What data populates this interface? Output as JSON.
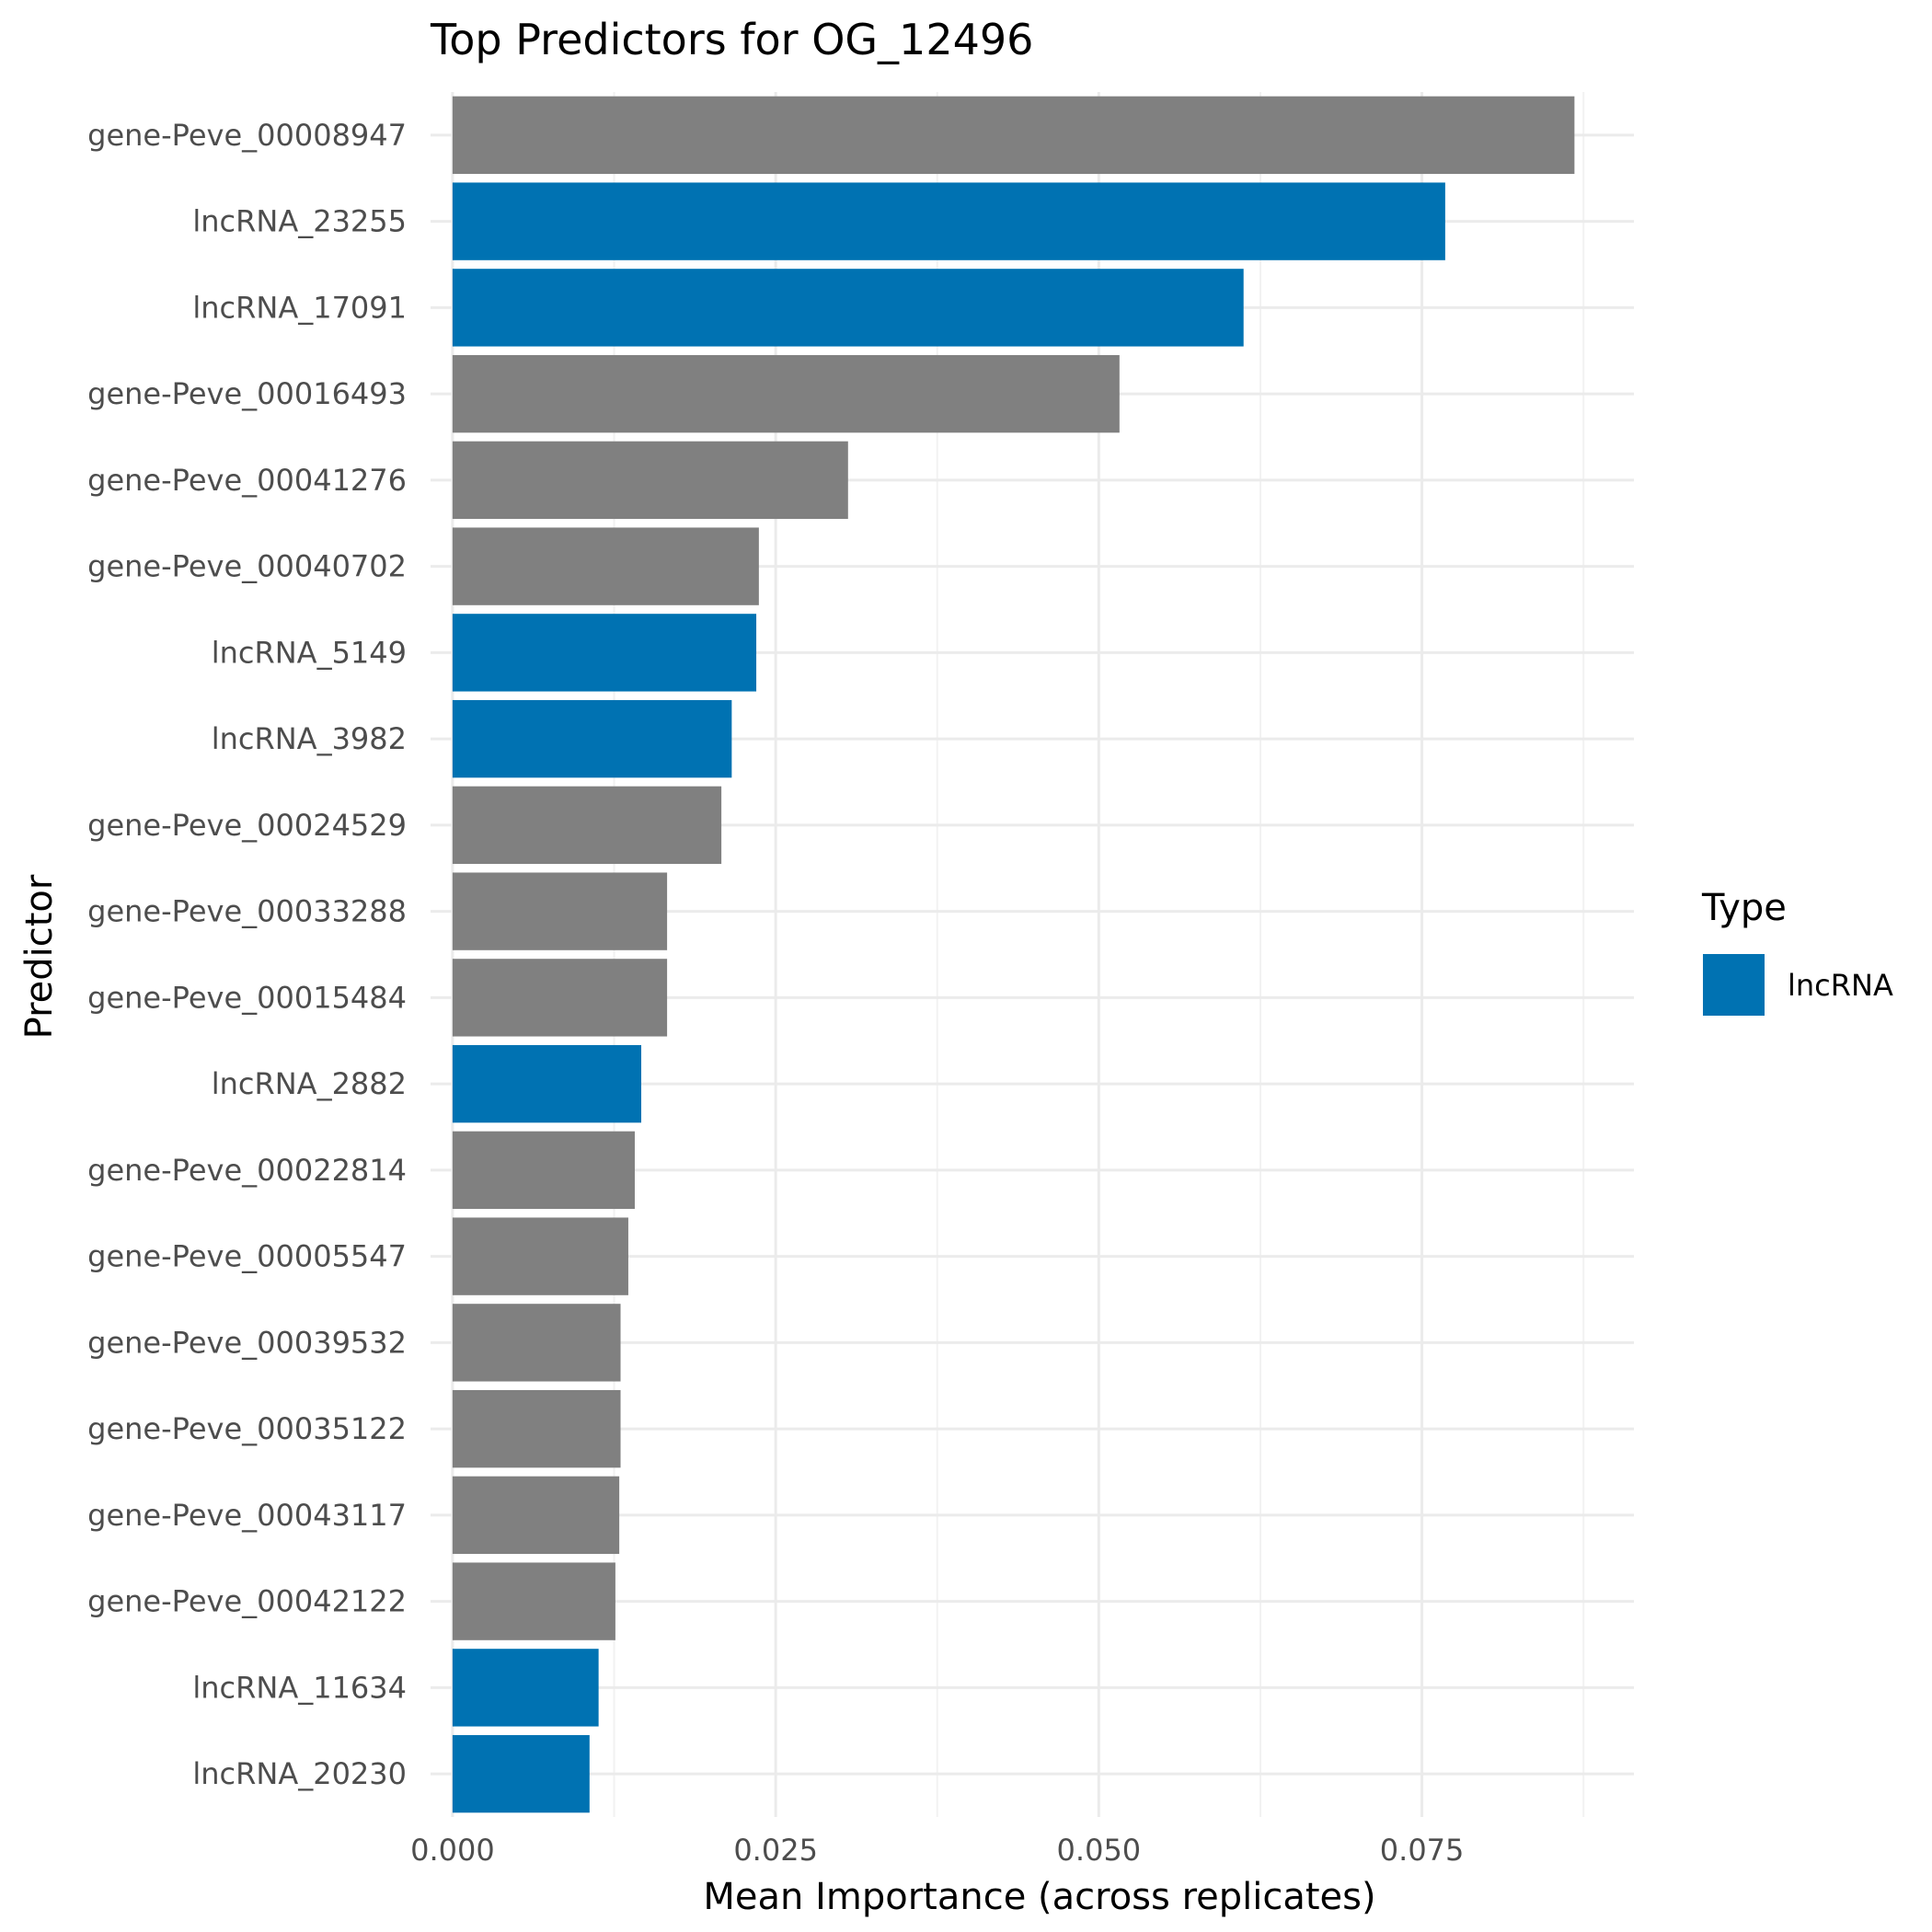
{
  "chart_data": {
    "type": "bar",
    "orientation": "horizontal",
    "title": "Top Predictors for OG_12496",
    "xlabel": "Mean Importance (across replicates)",
    "ylabel": "Predictor",
    "xlim": [
      -0.0017,
      0.0914
    ],
    "x_ticks": [
      "0.000",
      "0.025",
      "0.050",
      "0.075"
    ],
    "grid": true,
    "legend": {
      "title": "Type",
      "position": "right",
      "entries": [
        {
          "label": "lncRNA",
          "color": "#0072B2"
        }
      ]
    },
    "colors": {
      "gene": "#808080",
      "lncRNA": "#0072B2"
    },
    "categories": [
      "gene-Peve_00008947",
      "lncRNA_23255",
      "lncRNA_17091",
      "gene-Peve_00016493",
      "gene-Peve_00041276",
      "gene-Peve_00040702",
      "lncRNA_5149",
      "lncRNA_3982",
      "gene-Peve_00024529",
      "gene-Peve_00033288",
      "gene-Peve_00015484",
      "lncRNA_2882",
      "gene-Peve_00022814",
      "gene-Peve_00005547",
      "gene-Peve_00039532",
      "gene-Peve_00035122",
      "gene-Peve_00043117",
      "gene-Peve_00042122",
      "lncRNA_11634",
      "lncRNA_20230"
    ],
    "values": [
      0.0868,
      0.0768,
      0.0612,
      0.0516,
      0.0306,
      0.0237,
      0.0235,
      0.0216,
      0.0208,
      0.0166,
      0.0166,
      0.0146,
      0.0141,
      0.0136,
      0.013,
      0.013,
      0.0129,
      0.0126,
      0.0113,
      0.0106
    ],
    "types": [
      "gene",
      "lncRNA",
      "lncRNA",
      "gene",
      "gene",
      "gene",
      "lncRNA",
      "lncRNA",
      "gene",
      "gene",
      "gene",
      "lncRNA",
      "gene",
      "gene",
      "gene",
      "gene",
      "gene",
      "gene",
      "lncRNA",
      "lncRNA"
    ]
  }
}
